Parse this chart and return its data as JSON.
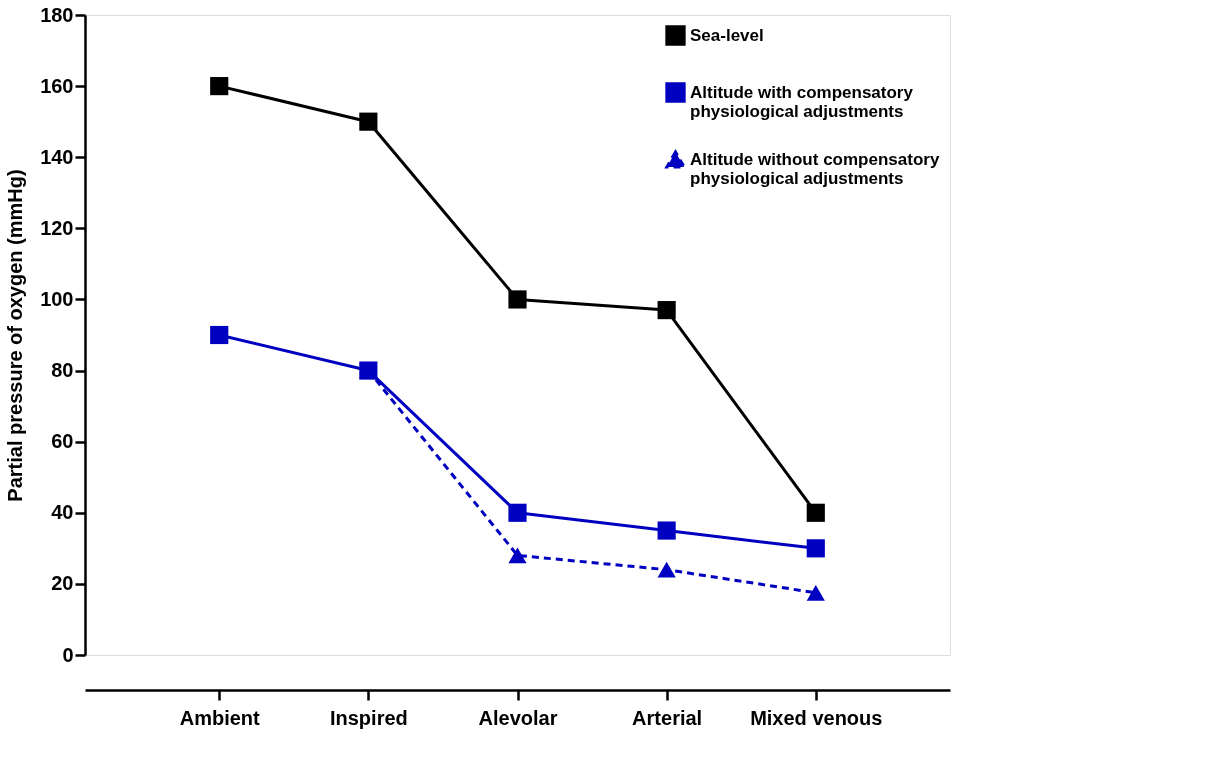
{
  "chart_data": {
    "type": "line",
    "ylabel": "Partial pressure of oxygen (mmHg)",
    "categories": [
      "Ambient",
      "Inspired",
      "Alevolar",
      "Arterial",
      "Mixed venous"
    ],
    "series": [
      {
        "name": "Sea-level",
        "color": "#000000",
        "marker": "square",
        "line_style": "solid",
        "values": [
          160,
          150,
          100,
          97,
          40
        ]
      },
      {
        "name": "Altitude with compensatory physiological adjustments",
        "color": "#0000c0",
        "marker": "square",
        "line_style": "solid",
        "values": [
          90,
          80,
          40,
          35,
          30
        ]
      },
      {
        "name": "Altitude without compensatory physiological adjustments",
        "color": "#0000c0",
        "marker": "triangle",
        "line_style": "dashed",
        "values": [
          null,
          80,
          28,
          24,
          17.5
        ]
      }
    ],
    "ylim": [
      0,
      180
    ],
    "yticks": [
      0,
      20,
      40,
      60,
      80,
      100,
      120,
      140,
      160,
      180
    ],
    "grid": false,
    "legend": "top right"
  }
}
